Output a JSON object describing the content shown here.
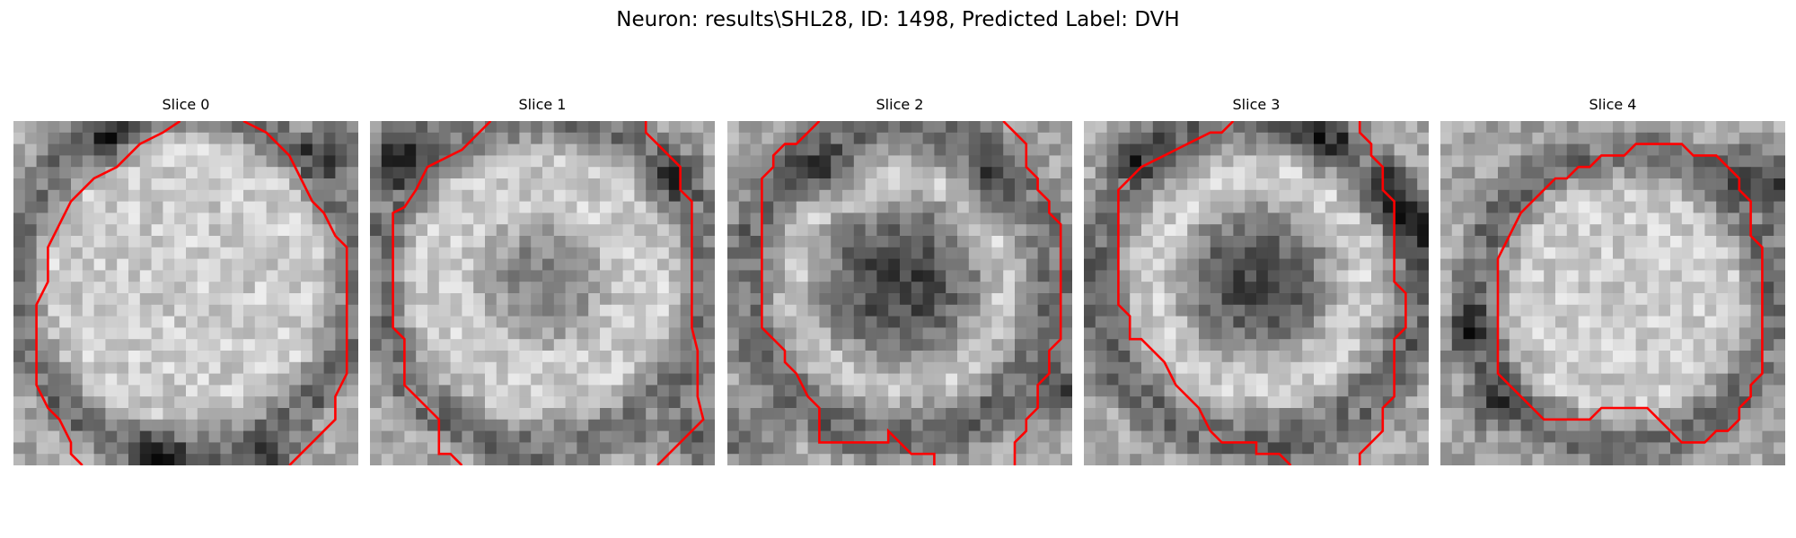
{
  "figure": {
    "title": "Neuron: results\\SHL28, ID: 1498, Predicted Label: DVH"
  },
  "colors": {
    "contour": "#ff0000",
    "background": "#ffffff"
  },
  "panels": [
    {
      "title": "Slice 0"
    },
    {
      "title": "Slice 1"
    },
    {
      "title": "Slice 2"
    },
    {
      "title": "Slice 3"
    },
    {
      "title": "Slice 4"
    }
  ]
}
